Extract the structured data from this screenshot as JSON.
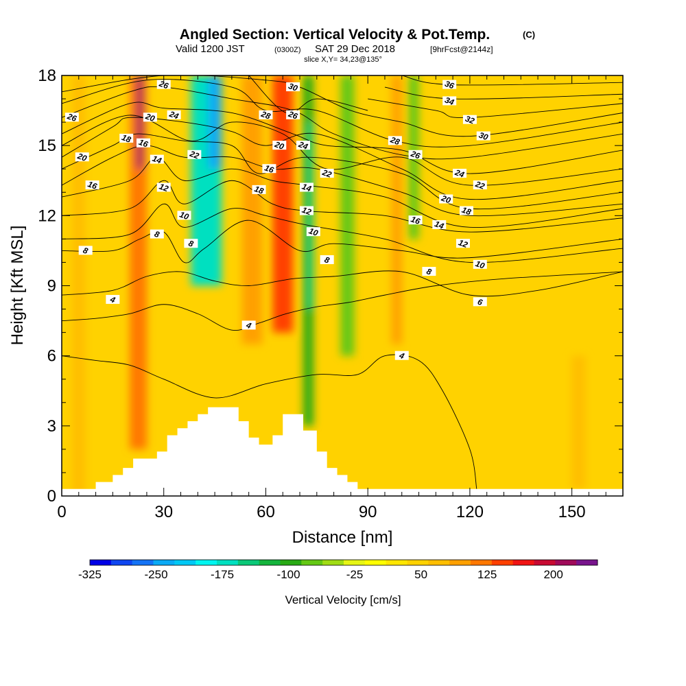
{
  "header": {
    "title_main": "Angled Section: Vertical Velocity & Pot.Temp.",
    "title_unit": "(C)",
    "valid_prefix": "Valid 1200 JST",
    "valid_utc": "(0300Z)",
    "valid_date": "SAT 29 Dec 2018",
    "valid_fcst": "[9hrFcst@2144z]",
    "slice": "slice X,Y= 34,23@135°"
  },
  "chart_data": {
    "type": "heatmap",
    "title": "Angled Section: Vertical Velocity & Pot.Temp.",
    "xlabel": "Distance [nm]",
    "ylabel": "Height [Kft MSL]",
    "xlim": [
      0,
      165
    ],
    "ylim": [
      0,
      18
    ],
    "xticks": [
      0,
      30,
      60,
      90,
      120,
      150
    ],
    "yticks": [
      0,
      3,
      6,
      9,
      12,
      15,
      18
    ],
    "colorbar": {
      "label": "Vertical Velocity [cm/s]",
      "tick_labels": [
        "-325",
        "-250",
        "-175",
        "-100",
        "-25",
        "50",
        "125",
        "200"
      ],
      "tick_values": [
        -325,
        -250,
        -175,
        -100,
        -25,
        50,
        125,
        200
      ],
      "bin_edges": [
        -325,
        -300,
        -275,
        -250,
        -225,
        -200,
        -175,
        -150,
        -125,
        -100,
        -75,
        -50,
        -25,
        0,
        25,
        50,
        75,
        100,
        125,
        150,
        175,
        200,
        225,
        250
      ],
      "colors": [
        "#0000e6",
        "#0f46f0",
        "#1473f5",
        "#0aaaf5",
        "#00c8f5",
        "#00f5f0",
        "#00e0c0",
        "#0ac878",
        "#14b43c",
        "#28aa14",
        "#64c814",
        "#a0dc14",
        "#e6f514",
        "#ffff00",
        "#ffe600",
        "#ffd200",
        "#ffbe00",
        "#ffa000",
        "#ff7800",
        "#ff4000",
        "#f01414",
        "#c80a32",
        "#a00a5a",
        "#78148c"
      ]
    },
    "terrain": [
      [
        0,
        0.3
      ],
      [
        10,
        0.3
      ],
      [
        10,
        0.6
      ],
      [
        15,
        0.6
      ],
      [
        15,
        0.9
      ],
      [
        18,
        0.9
      ],
      [
        18,
        1.2
      ],
      [
        21,
        1.2
      ],
      [
        21,
        1.6
      ],
      [
        28,
        1.6
      ],
      [
        28,
        1.9
      ],
      [
        31,
        1.9
      ],
      [
        31,
        2.6
      ],
      [
        34,
        2.6
      ],
      [
        34,
        2.9
      ],
      [
        37,
        2.9
      ],
      [
        37,
        3.2
      ],
      [
        40,
        3.2
      ],
      [
        40,
        3.5
      ],
      [
        43,
        3.5
      ],
      [
        43,
        3.8
      ],
      [
        52,
        3.8
      ],
      [
        52,
        3.2
      ],
      [
        55,
        3.2
      ],
      [
        55,
        2.5
      ],
      [
        58,
        2.5
      ],
      [
        58,
        2.2
      ],
      [
        62,
        2.2
      ],
      [
        62,
        2.6
      ],
      [
        65,
        2.6
      ],
      [
        65,
        3.5
      ],
      [
        71,
        3.5
      ],
      [
        71,
        2.8
      ],
      [
        75,
        2.8
      ],
      [
        75,
        1.9
      ],
      [
        78,
        1.9
      ],
      [
        78,
        1.2
      ],
      [
        81,
        1.2
      ],
      [
        81,
        0.9
      ],
      [
        84,
        0.9
      ],
      [
        84,
        0.6
      ],
      [
        87,
        0.6
      ],
      [
        87,
        0.3
      ],
      [
        165,
        0.3
      ]
    ],
    "vertical_velocity_bands": [
      {
        "x": 3,
        "w": 4,
        "yb": 0,
        "yt": 18,
        "v": 80
      },
      {
        "x": 20,
        "w": 5,
        "yb": 2,
        "yt": 18,
        "v": 140
      },
      {
        "x": 22,
        "w": 2,
        "yb": 14,
        "yt": 18,
        "v": 230
      },
      {
        "x": 38,
        "w": 9,
        "yb": 9,
        "yt": 18,
        "v": -160
      },
      {
        "x": 43,
        "w": 4,
        "yb": 14,
        "yt": 18,
        "v": -240
      },
      {
        "x": 53,
        "w": 6,
        "yb": 6.5,
        "yt": 18,
        "v": 110
      },
      {
        "x": 62,
        "w": 6,
        "yb": 7,
        "yt": 18,
        "v": 160
      },
      {
        "x": 71,
        "w": 3,
        "yb": 3,
        "yt": 18,
        "v": -100
      },
      {
        "x": 72,
        "w": 2,
        "yb": 8,
        "yt": 16,
        "v": -150
      },
      {
        "x": 82,
        "w": 4,
        "yb": 6,
        "yt": 18,
        "v": -60
      },
      {
        "x": 97,
        "w": 3,
        "yb": 6.5,
        "yt": 18,
        "v": 100
      },
      {
        "x": 102,
        "w": 3,
        "yb": 11,
        "yt": 18,
        "v": -60
      },
      {
        "x": 150,
        "w": 4,
        "yb": 0.3,
        "yt": 6,
        "v": 90
      }
    ],
    "potential_temperature_isotherms": [
      {
        "value": 4,
        "points": [
          [
            0,
            7.5
          ],
          [
            10,
            7.6
          ],
          [
            20,
            7.8
          ],
          [
            30,
            8.2
          ],
          [
            40,
            7.8
          ],
          [
            50,
            7.1
          ],
          [
            58,
            7.4
          ],
          [
            66,
            7.8
          ],
          [
            75,
            8.1
          ],
          [
            85,
            8.3
          ],
          [
            95,
            8.6
          ],
          [
            110,
            9.0
          ],
          [
            130,
            9.3
          ],
          [
            165,
            9.6
          ]
        ],
        "labels": [
          [
            15,
            8.4
          ],
          [
            55,
            7.3
          ]
        ]
      },
      {
        "value": 4,
        "points": [
          [
            0,
            6.0
          ],
          [
            10,
            5.8
          ],
          [
            20,
            5.6
          ],
          [
            30,
            5.0
          ],
          [
            45,
            4.2
          ],
          [
            60,
            4.8
          ],
          [
            75,
            5.2
          ],
          [
            87,
            5.2
          ],
          [
            95,
            6.0
          ],
          [
            105,
            5.8
          ],
          [
            112,
            4.5
          ],
          [
            120,
            2.0
          ],
          [
            122,
            0.3
          ]
        ],
        "labels": [
          [
            100,
            6.0
          ]
        ]
      },
      {
        "value": 6,
        "points": [
          [
            0,
            8.6
          ],
          [
            15,
            8.8
          ],
          [
            25,
            9.4
          ],
          [
            35,
            9.6
          ],
          [
            45,
            9.2
          ],
          [
            55,
            9.0
          ],
          [
            68,
            9.3
          ],
          [
            80,
            9.4
          ],
          [
            100,
            9.6
          ],
          [
            120,
            8.6
          ],
          [
            140,
            8.8
          ],
          [
            165,
            9.6
          ]
        ],
        "labels": [
          [
            123,
            8.3
          ]
        ]
      },
      {
        "value": 8,
        "points": [
          [
            0,
            10.5
          ],
          [
            15,
            10.5
          ],
          [
            23,
            11.0
          ],
          [
            30,
            11.3
          ],
          [
            36,
            10.0
          ],
          [
            42,
            10.6
          ],
          [
            55,
            11.8
          ],
          [
            70,
            10.5
          ],
          [
            80,
            10.8
          ],
          [
            100,
            10.5
          ],
          [
            120,
            10.2
          ],
          [
            165,
            11.0
          ]
        ],
        "labels": [
          [
            7,
            10.5
          ],
          [
            28,
            11.2
          ],
          [
            38,
            10.8
          ],
          [
            78,
            10.1
          ],
          [
            108,
            9.6
          ]
        ]
      },
      {
        "value": 10,
        "points": [
          [
            0,
            11.0
          ],
          [
            20,
            11.2
          ],
          [
            30,
            12.5
          ],
          [
            36,
            11.5
          ],
          [
            50,
            12.3
          ],
          [
            60,
            12.0
          ],
          [
            72,
            11.6
          ],
          [
            95,
            11.0
          ],
          [
            120,
            10.0
          ],
          [
            165,
            10.6
          ]
        ],
        "labels": [
          [
            36,
            12.0
          ],
          [
            74,
            11.3
          ],
          [
            123,
            9.9
          ]
        ]
      },
      {
        "value": 12,
        "points": [
          [
            0,
            12.0
          ],
          [
            20,
            12.3
          ],
          [
            30,
            13.5
          ],
          [
            36,
            12.5
          ],
          [
            50,
            13.5
          ],
          [
            62,
            12.5
          ],
          [
            72,
            12.2
          ],
          [
            95,
            12.0
          ],
          [
            120,
            11.3
          ],
          [
            165,
            11.9
          ]
        ],
        "labels": [
          [
            30,
            13.2
          ],
          [
            72,
            12.2
          ],
          [
            118,
            10.8
          ]
        ]
      },
      {
        "value": 14,
        "points": [
          [
            0,
            12.8
          ],
          [
            20,
            13.5
          ],
          [
            28,
            14.5
          ],
          [
            36,
            13.5
          ],
          [
            50,
            14.0
          ],
          [
            62,
            13.5
          ],
          [
            72,
            13.3
          ],
          [
            95,
            12.8
          ],
          [
            120,
            11.5
          ],
          [
            165,
            12.3
          ]
        ],
        "labels": [
          [
            28,
            14.4
          ],
          [
            72,
            13.2
          ],
          [
            111,
            11.6
          ]
        ]
      },
      {
        "value": 16,
        "points": [
          [
            0,
            13.3
          ],
          [
            15,
            14.5
          ],
          [
            25,
            15.0
          ],
          [
            36,
            14.5
          ],
          [
            50,
            14.5
          ],
          [
            62,
            14.0
          ],
          [
            75,
            14.0
          ],
          [
            100,
            13.0
          ],
          [
            120,
            12.0
          ],
          [
            165,
            12.5
          ]
        ],
        "labels": [
          [
            9,
            13.3
          ],
          [
            24,
            15.1
          ],
          [
            61,
            14.0
          ],
          [
            104,
            11.8
          ]
        ]
      },
      {
        "value": 18,
        "points": [
          [
            0,
            14.0
          ],
          [
            15,
            15.0
          ],
          [
            22,
            15.5
          ],
          [
            36,
            15.2
          ],
          [
            50,
            15.0
          ],
          [
            58,
            13.8
          ],
          [
            72,
            14.5
          ],
          [
            100,
            13.8
          ],
          [
            120,
            12.3
          ],
          [
            165,
            13.0
          ]
        ],
        "labels": [
          [
            19,
            15.3
          ],
          [
            58,
            13.1
          ],
          [
            119,
            12.2
          ]
        ]
      },
      {
        "value": 20,
        "points": [
          [
            0,
            14.5
          ],
          [
            15,
            15.8
          ],
          [
            20,
            16.2
          ],
          [
            36,
            16.0
          ],
          [
            50,
            15.6
          ],
          [
            60,
            15.0
          ],
          [
            75,
            15.5
          ],
          [
            100,
            14.0
          ],
          [
            120,
            12.7
          ],
          [
            165,
            13.5
          ]
        ],
        "labels": [
          [
            6,
            14.5
          ],
          [
            26,
            16.2
          ],
          [
            64,
            15.0
          ],
          [
            113,
            12.7
          ]
        ]
      },
      {
        "value": 22,
        "points": [
          [
            0,
            15.0
          ],
          [
            20,
            16.3
          ],
          [
            38,
            15.2
          ],
          [
            50,
            16.0
          ],
          [
            65,
            15.5
          ],
          [
            78,
            14.0
          ],
          [
            100,
            14.5
          ],
          [
            120,
            13.3
          ],
          [
            165,
            14.0
          ]
        ],
        "labels": [
          [
            39,
            14.6
          ],
          [
            78,
            13.8
          ],
          [
            123,
            13.3
          ]
        ]
      },
      {
        "value": 24,
        "points": [
          [
            0,
            15.5
          ],
          [
            20,
            16.8
          ],
          [
            30,
            16.6
          ],
          [
            50,
            16.4
          ],
          [
            68,
            15.5
          ],
          [
            78,
            15.0
          ],
          [
            100,
            14.8
          ],
          [
            120,
            13.8
          ],
          [
            165,
            14.8
          ]
        ],
        "labels": [
          [
            33,
            16.3
          ],
          [
            71,
            15.0
          ],
          [
            117,
            13.8
          ]
        ]
      },
      {
        "value": 26,
        "points": [
          [
            0,
            16.2
          ],
          [
            20,
            17.3
          ],
          [
            30,
            17.5
          ],
          [
            50,
            17.0
          ],
          [
            68,
            16.5
          ],
          [
            80,
            15.5
          ],
          [
            100,
            14.6
          ],
          [
            120,
            14.5
          ],
          [
            165,
            15.5
          ]
        ],
        "labels": [
          [
            3,
            16.2
          ],
          [
            104,
            14.6
          ]
        ]
      },
      {
        "value": 28,
        "points": [
          [
            0,
            16.8
          ],
          [
            25,
            17.8
          ],
          [
            50,
            17.5
          ],
          [
            60,
            16.5
          ],
          [
            75,
            16.5
          ],
          [
            98,
            15.2
          ],
          [
            120,
            15.0
          ],
          [
            165,
            16.0
          ]
        ],
        "labels": [
          [
            60,
            16.3
          ],
          [
            98,
            15.2
          ]
        ]
      },
      {
        "value": 26,
        "points": [
          [
            55,
            18
          ],
          [
            66,
            16.4
          ],
          [
            75,
            17.0
          ],
          [
            90,
            16.5
          ]
        ],
        "labels": [
          [
            68,
            16.3
          ],
          [
            30,
            17.6
          ]
        ]
      },
      {
        "value": 30,
        "points": [
          [
            0,
            17.3
          ],
          [
            30,
            18
          ],
          [
            60,
            17.8
          ],
          [
            70,
            17.5
          ],
          [
            85,
            16.5
          ],
          [
            100,
            16.0
          ],
          [
            120,
            15.4
          ],
          [
            165,
            16.4
          ]
        ],
        "labels": [
          [
            68,
            17.5
          ],
          [
            124,
            15.4
          ]
        ]
      },
      {
        "value": 32,
        "points": [
          [
            90,
            17.0
          ],
          [
            110,
            16.5
          ],
          [
            120,
            16.2
          ],
          [
            165,
            16.8
          ]
        ],
        "labels": [
          [
            120,
            16.1
          ]
        ]
      },
      {
        "value": 34,
        "points": [
          [
            95,
            17.5
          ],
          [
            115,
            17.0
          ],
          [
            165,
            17.2
          ]
        ],
        "labels": [
          [
            114,
            16.9
          ]
        ]
      },
      {
        "value": 36,
        "points": [
          [
            100,
            18
          ],
          [
            115,
            17.6
          ],
          [
            165,
            17.7
          ]
        ],
        "labels": [
          [
            114,
            17.6
          ]
        ]
      }
    ]
  }
}
